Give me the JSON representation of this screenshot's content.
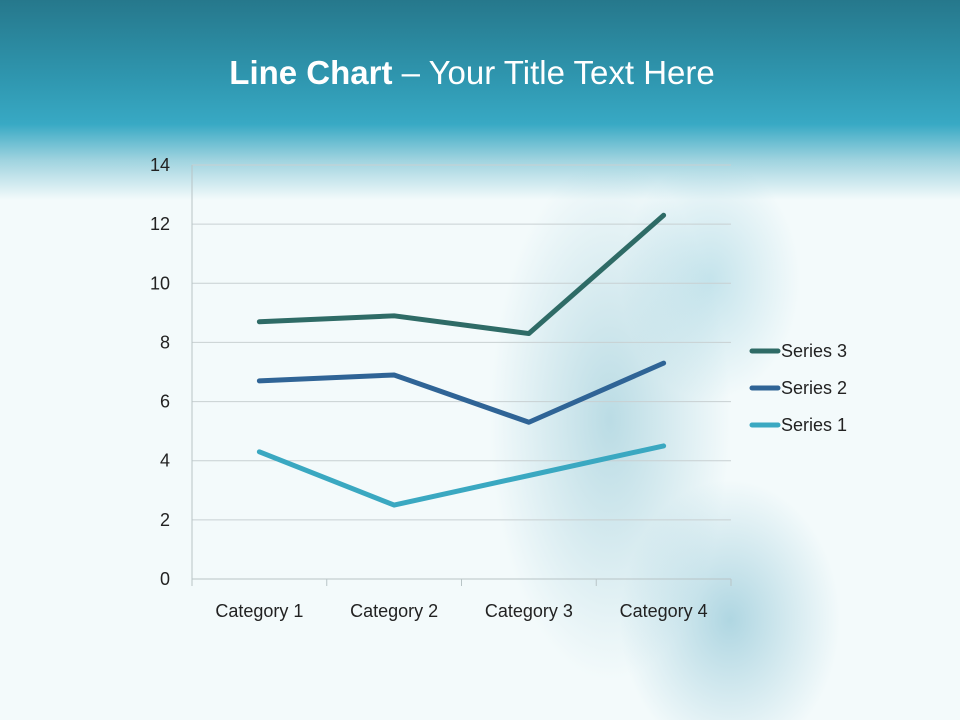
{
  "slide": {
    "title_bold": "Line Chart",
    "title_rest": " – Your Title Text Here"
  },
  "chart_data": {
    "type": "line",
    "stacked": true,
    "categories": [
      "Category 1",
      "Category 2",
      "Category 3",
      "Category 4"
    ],
    "series": [
      {
        "name": "Series 1",
        "values": [
          4.3,
          2.5,
          3.5,
          4.5
        ],
        "plotted": [
          4.3,
          2.5,
          3.5,
          4.5
        ],
        "color": "#3aa8c1"
      },
      {
        "name": "Series 2",
        "values": [
          2.4,
          4.4,
          1.8,
          2.8
        ],
        "plotted": [
          6.7,
          6.9,
          5.3,
          7.3
        ],
        "color": "#2f6496"
      },
      {
        "name": "Series 3",
        "values": [
          2,
          2,
          3,
          5
        ],
        "plotted": [
          8.7,
          8.9,
          8.3,
          12.3
        ],
        "color": "#2e6b66"
      }
    ],
    "ylim": [
      0,
      14
    ],
    "yticks": [
      0,
      2,
      4,
      6,
      8,
      10,
      12,
      14
    ],
    "grid": true,
    "legend": "right"
  }
}
